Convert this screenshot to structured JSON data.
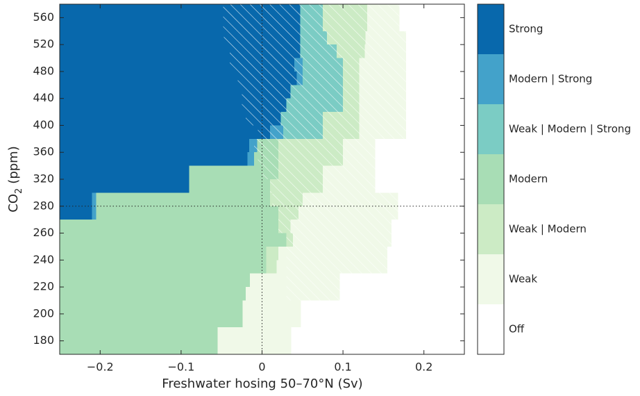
{
  "chart_data": {
    "type": "regime_map",
    "xlabel": "Freshwater hosing 50–70°N (Sv)",
    "ylabel": [
      "CO",
      "2",
      "(ppm)"
    ],
    "xlim": [
      -0.25,
      0.25
    ],
    "xticks": [
      {
        "value": -0.2,
        "label": "−0.2"
      },
      {
        "value": -0.1,
        "label": "−0.1"
      },
      0,
      0.1,
      0.2
    ],
    "ylim": [
      170,
      580
    ],
    "yticks": [
      180,
      200,
      220,
      240,
      260,
      280,
      320,
      360,
      400,
      440,
      480,
      520,
      560
    ],
    "ref_x": 0,
    "ref_y": 280,
    "regimes": [
      {
        "name": "Strong",
        "color": "#0868ac"
      },
      {
        "name": "Modern | Strong",
        "color": "#43a2ca"
      },
      {
        "name": "Weak | Modern | Strong",
        "color": "#7bccc4"
      },
      {
        "name": "Modern",
        "color": "#a8ddb5"
      },
      {
        "name": "Weak | Modern",
        "color": "#ccebc5"
      },
      {
        "name": "Weak",
        "color": "#f0f9e8"
      },
      {
        "name": "Off",
        "color": "#ffffff"
      }
    ],
    "rows": [
      {
        "co2": [
          560,
          580
        ],
        "edges": [
          0.047,
          0.075,
          0.13,
          0.17
        ],
        "regimes": [
          0,
          2,
          4,
          5,
          6
        ],
        "hatch": [
          -0.048,
          0.17
        ]
      },
      {
        "co2": [
          540,
          560
        ],
        "edges": [
          0.047,
          0.075,
          0.13,
          0.17
        ],
        "regimes": [
          0,
          2,
          4,
          5,
          6
        ],
        "hatch": [
          -0.048,
          0.17
        ]
      },
      {
        "co2": [
          520,
          540
        ],
        "edges": [
          0.047,
          0.08,
          0.128,
          0.178
        ],
        "regimes": [
          0,
          2,
          4,
          5,
          6
        ],
        "hatch": [
          -0.047,
          0.178
        ]
      },
      {
        "co2": [
          500,
          520
        ],
        "edges": [
          0.047,
          0.092,
          0.127,
          0.178
        ],
        "regimes": [
          0,
          2,
          4,
          5,
          6
        ],
        "hatch": [
          -0.04,
          0.178
        ]
      },
      {
        "co2": [
          480,
          500
        ],
        "edges": [
          0.04,
          0.05,
          0.1,
          0.12,
          0.178
        ],
        "regimes": [
          0,
          1,
          2,
          4,
          5,
          6
        ],
        "hatch": [
          -0.04,
          0.178
        ]
      },
      {
        "co2": [
          460,
          480
        ],
        "edges": [
          0.043,
          0.05,
          0.1,
          0.12,
          0.178
        ],
        "regimes": [
          0,
          1,
          2,
          4,
          5,
          6
        ],
        "hatch": [
          -0.03,
          0.178
        ]
      },
      {
        "co2": [
          440,
          460
        ],
        "edges": [
          0.035,
          0.1,
          0.12,
          0.178
        ],
        "regimes": [
          0,
          2,
          4,
          5,
          6
        ],
        "hatch": [
          -0.025,
          0.178
        ]
      },
      {
        "co2": [
          420,
          440
        ],
        "edges": [
          0.03,
          0.1,
          0.12,
          0.178
        ],
        "regimes": [
          0,
          2,
          4,
          5,
          6
        ],
        "hatch": [
          -0.025,
          0.178
        ]
      },
      {
        "co2": [
          400,
          420
        ],
        "edges": [
          0.023,
          0.075,
          0.12,
          0.178
        ],
        "regimes": [
          0,
          2,
          4,
          5,
          6
        ],
        "hatch": [
          -0.02,
          0.178
        ]
      },
      {
        "co2": [
          380,
          400
        ],
        "edges": [
          0.01,
          0.026,
          0.075,
          0.12,
          0.178
        ],
        "regimes": [
          0,
          1,
          2,
          4,
          5,
          6
        ],
        "hatch": [
          -0.005,
          0.178
        ]
      },
      {
        "co2": [
          360,
          380
        ],
        "edges": [
          -0.016,
          -0.006,
          0.02,
          0.1,
          0.14
        ],
        "regimes": [
          0,
          1,
          3,
          4,
          5,
          6
        ],
        "hatch": [
          -0.01,
          0.14
        ]
      },
      {
        "co2": [
          340,
          360
        ],
        "edges": [
          -0.018,
          -0.01,
          0.02,
          0.1,
          0.14
        ],
        "regimes": [
          0,
          1,
          3,
          4,
          5,
          6
        ],
        "hatch": [
          -0.005,
          0.14
        ]
      },
      {
        "co2": [
          320,
          340
        ],
        "edges": [
          -0.09,
          0.02,
          0.075,
          0.14
        ],
        "regimes": [
          0,
          3,
          4,
          5,
          6
        ],
        "hatch": [
          0,
          0.14
        ]
      },
      {
        "co2": [
          300,
          320
        ],
        "edges": [
          -0.09,
          0.01,
          0.075,
          0.14
        ],
        "regimes": [
          0,
          3,
          4,
          5,
          6
        ],
        "hatch": [
          0.01,
          0.14
        ]
      },
      {
        "co2": [
          280,
          300
        ],
        "edges": [
          -0.21,
          -0.205,
          0.01,
          0.05,
          0.168
        ],
        "regimes": [
          0,
          1,
          3,
          4,
          5,
          6
        ],
        "hatch": [
          0.013,
          0.168
        ]
      },
      {
        "co2": [
          270,
          280
        ],
        "edges": [
          -0.21,
          -0.205,
          0.02,
          0.045,
          0.168
        ],
        "regimes": [
          0,
          1,
          3,
          4,
          5,
          6
        ],
        "hatch": [
          0.02,
          0.168
        ]
      },
      {
        "co2": [
          260,
          270
        ],
        "edges": [
          0.02,
          0.035,
          0.16
        ],
        "regimes": [
          3,
          4,
          5,
          6
        ],
        "hatch": [
          0.02,
          0.16
        ]
      },
      {
        "co2": [
          250,
          260
        ],
        "edges": [
          0.03,
          0.038,
          0.16
        ],
        "regimes": [
          3,
          4,
          5,
          6
        ],
        "hatch": [
          0.03,
          0.16
        ]
      },
      {
        "co2": [
          240,
          250
        ],
        "edges": [
          0.005,
          0.02,
          0.155
        ],
        "regimes": [
          3,
          4,
          5,
          6
        ],
        "hatch": [
          0.03,
          0.155
        ]
      },
      {
        "co2": [
          230,
          240
        ],
        "edges": [
          0.005,
          0.018,
          0.155
        ],
        "regimes": [
          3,
          4,
          5,
          6
        ],
        "hatch": [
          0.03,
          0.155
        ]
      },
      {
        "co2": [
          220,
          230
        ],
        "edges": [
          -0.015,
          0.096
        ],
        "regimes": [
          3,
          5,
          6
        ],
        "hatch": [
          0.03,
          0.096
        ]
      },
      {
        "co2": [
          210,
          220
        ],
        "edges": [
          -0.02,
          0.096
        ],
        "regimes": [
          3,
          5,
          6
        ],
        "hatch": [
          0.03,
          0.096
        ]
      },
      {
        "co2": [
          200,
          210
        ],
        "edges": [
          -0.024,
          0.048
        ],
        "regimes": [
          3,
          5,
          6
        ]
      },
      {
        "co2": [
          190,
          200
        ],
        "edges": [
          -0.024,
          0.048
        ],
        "regimes": [
          3,
          5,
          6
        ]
      },
      {
        "co2": [
          180,
          190
        ],
        "edges": [
          -0.055,
          0.036
        ],
        "regimes": [
          3,
          5,
          6
        ]
      },
      {
        "co2": [
          170,
          180
        ],
        "edges": [
          -0.055,
          0.036
        ],
        "regimes": [
          3,
          5,
          6
        ]
      }
    ]
  }
}
